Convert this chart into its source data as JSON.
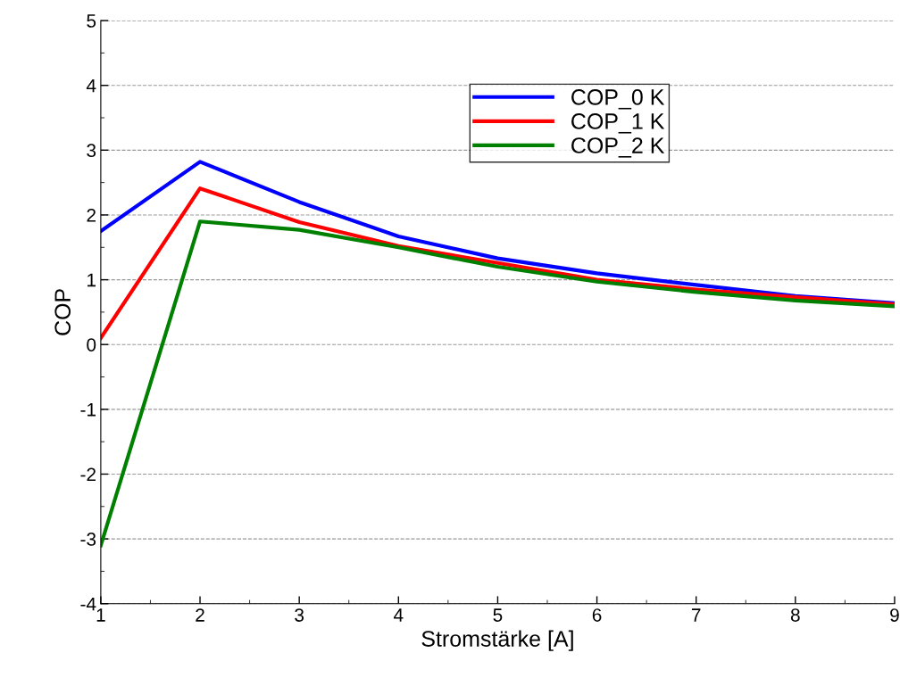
{
  "chart_data": {
    "type": "line",
    "xlabel": "Stromstärke [A]",
    "ylabel": "COP",
    "x": [
      1,
      2,
      3,
      4,
      5,
      6,
      7,
      8,
      9
    ],
    "series": [
      {
        "name": "COP_0 K",
        "color": "#0000ff",
        "values": [
          1.75,
          2.82,
          2.2,
          1.67,
          1.33,
          1.1,
          0.92,
          0.75,
          0.64
        ]
      },
      {
        "name": "COP_1 K",
        "color": "#ff0000",
        "values": [
          0.1,
          2.41,
          1.89,
          1.52,
          1.26,
          1.0,
          0.85,
          0.73,
          0.62
        ]
      },
      {
        "name": "COP_2 K",
        "color": "#008000",
        "values": [
          -3.1,
          1.9,
          1.77,
          1.5,
          1.2,
          0.97,
          0.81,
          0.68,
          0.59
        ]
      }
    ],
    "xlim": [
      1,
      9
    ],
    "xticks": [
      1,
      2,
      3,
      4,
      5,
      6,
      7,
      8,
      9
    ],
    "ylim": [
      -4,
      5
    ],
    "yticks": [
      -4,
      -3,
      -2,
      -1,
      0,
      1,
      2,
      3,
      4,
      5
    ],
    "grid": "y",
    "legend": "top right",
    "line_style": "solid",
    "marker": "none"
  }
}
